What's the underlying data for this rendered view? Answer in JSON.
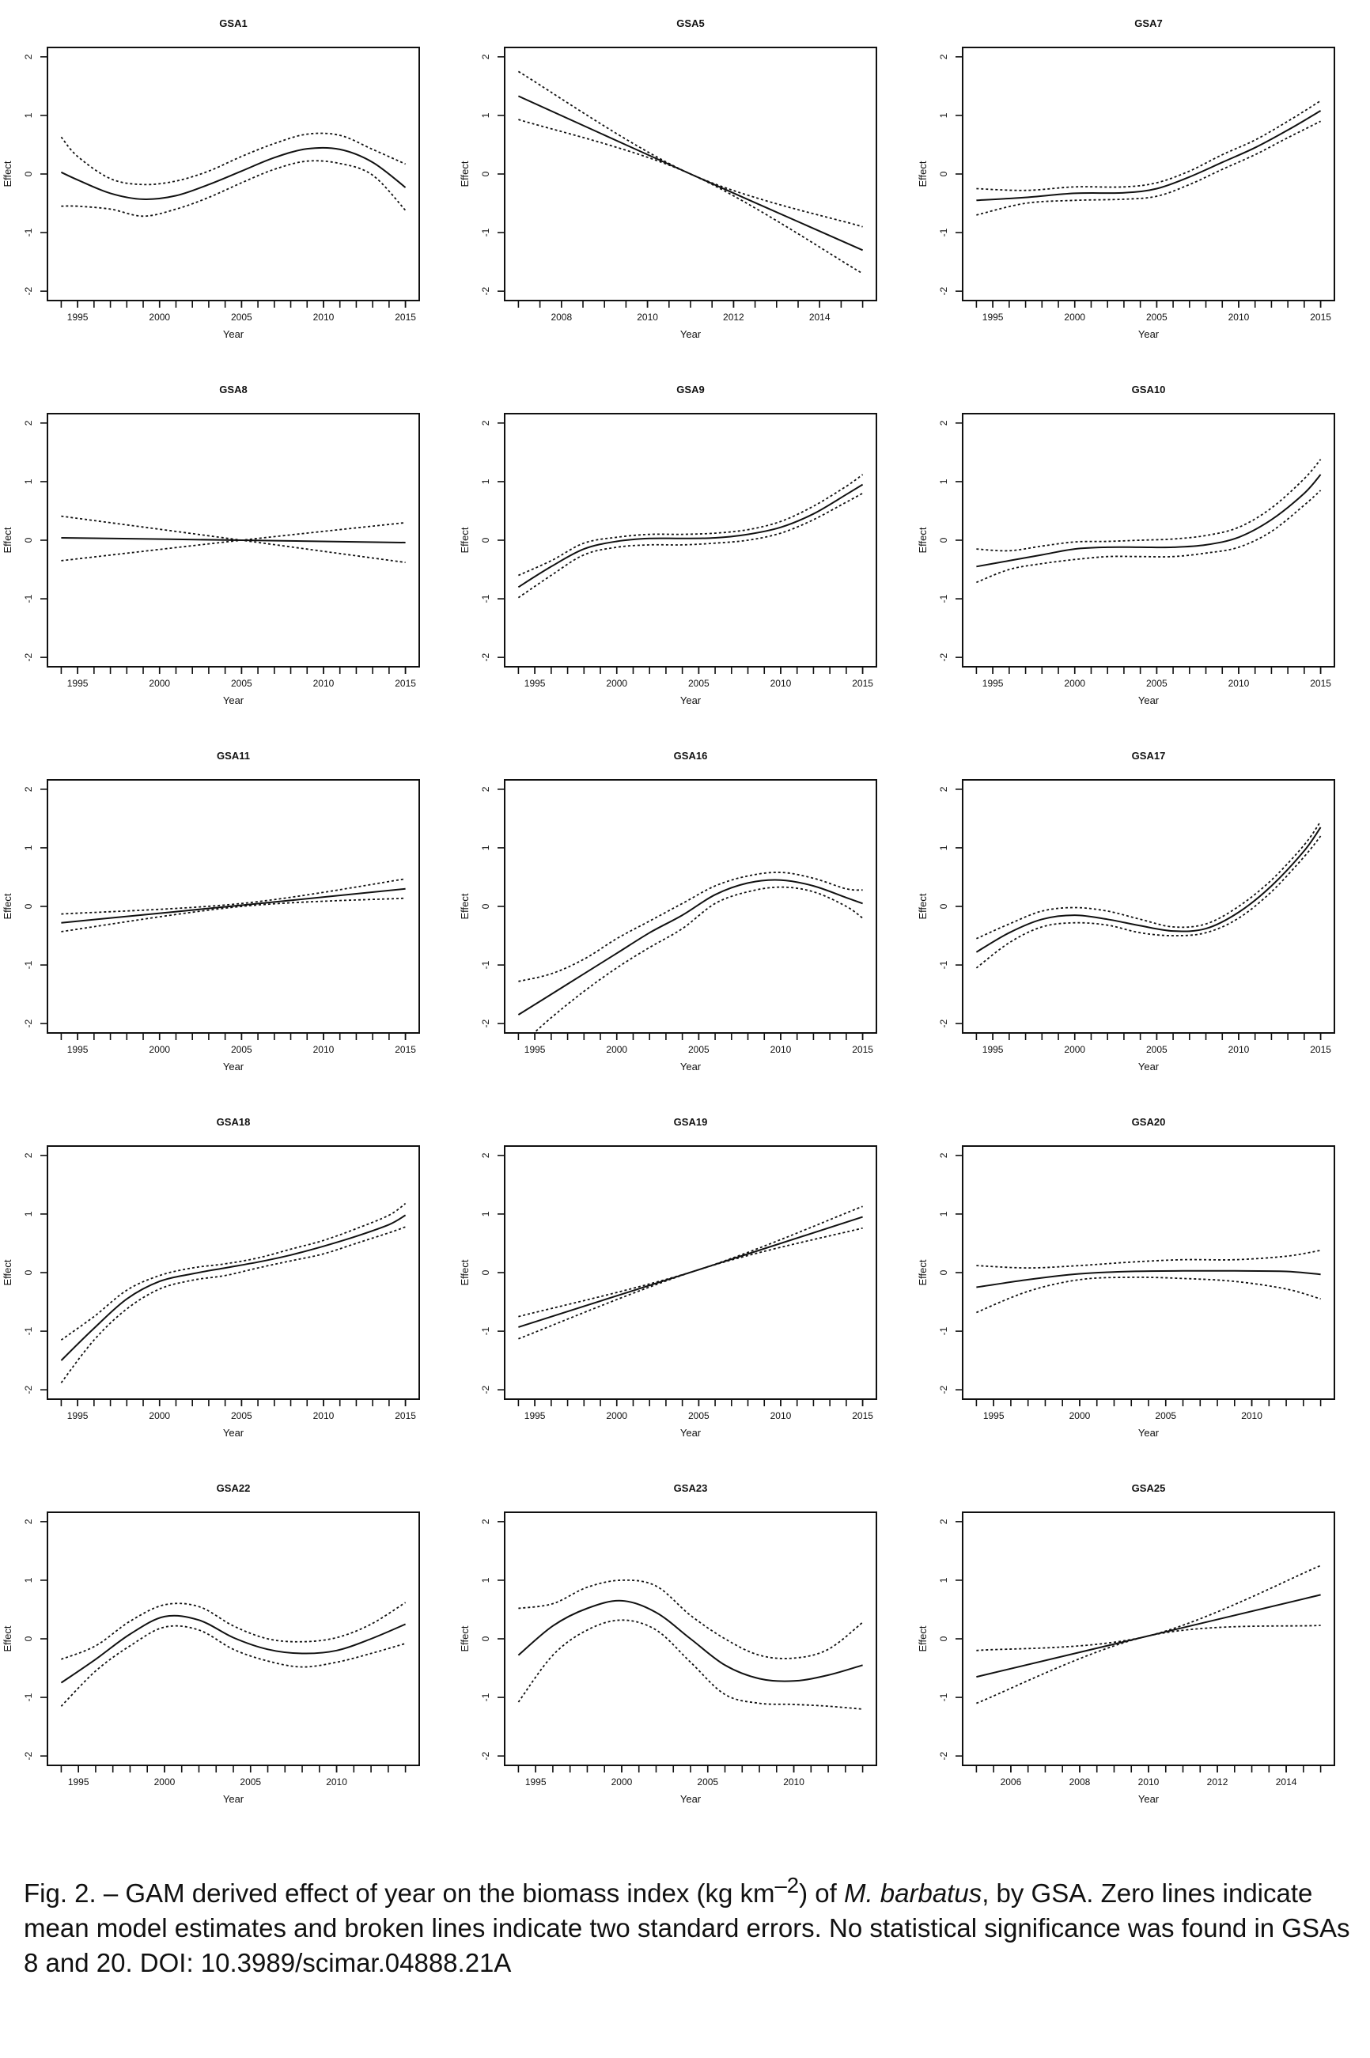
{
  "chart_data": [
    {
      "type": "line",
      "title": "GSA1",
      "xlabel": "Year",
      "ylabel": "Effect",
      "xlim": [
        1994,
        2015
      ],
      "ylim": [
        -2,
        2
      ],
      "xticks": [
        1995,
        2000,
        2005,
        2010,
        2015
      ],
      "yticks": [
        -2,
        -1,
        0,
        1,
        2
      ],
      "x": [
        1994,
        1995,
        1997,
        1999,
        2001,
        2003,
        2005,
        2007,
        2009,
        2011,
        2013,
        2015
      ],
      "series": [
        {
          "values": [
            0.03,
            -0.1,
            -0.33,
            -0.43,
            -0.37,
            -0.18,
            0.05,
            0.28,
            0.43,
            0.42,
            0.2,
            -0.23
          ]
        },
        {
          "values": [
            0.63,
            0.3,
            -0.08,
            -0.18,
            -0.12,
            0.05,
            0.3,
            0.52,
            0.68,
            0.66,
            0.42,
            0.17
          ]
        },
        {
          "values": [
            -0.55,
            -0.55,
            -0.6,
            -0.72,
            -0.6,
            -0.4,
            -0.15,
            0.08,
            0.22,
            0.18,
            -0.02,
            -0.62
          ]
        }
      ]
    },
    {
      "type": "line",
      "title": "GSA5",
      "xlabel": "Year",
      "ylabel": "Effect",
      "xlim": [
        2007,
        2015
      ],
      "ylim": [
        -2,
        2
      ],
      "xticks": [
        2008,
        2010,
        2012,
        2014
      ],
      "yticks": [
        -2,
        -1,
        0,
        1,
        2
      ],
      "x": [
        2007,
        2011,
        2015
      ],
      "series": [
        {
          "values": [
            1.33,
            0,
            -1.3
          ]
        },
        {
          "values": [
            1.75,
            0,
            -0.9
          ]
        },
        {
          "values": [
            0.93,
            0,
            -1.7
          ]
        }
      ]
    },
    {
      "type": "line",
      "title": "GSA7",
      "xlabel": "Year",
      "ylabel": "Effect",
      "xlim": [
        1994,
        2015
      ],
      "ylim": [
        -2,
        2
      ],
      "xticks": [
        1995,
        2000,
        2005,
        2010,
        2015
      ],
      "yticks": [
        -2,
        -1,
        0,
        1,
        2
      ],
      "x": [
        1994,
        1997,
        2000,
        2003,
        2005,
        2007,
        2009,
        2011,
        2013,
        2015
      ],
      "series": [
        {
          "values": [
            -0.45,
            -0.4,
            -0.33,
            -0.32,
            -0.25,
            -0.05,
            0.2,
            0.45,
            0.75,
            1.08
          ]
        },
        {
          "values": [
            -0.25,
            -0.28,
            -0.22,
            -0.22,
            -0.15,
            0.05,
            0.33,
            0.58,
            0.9,
            1.25
          ]
        },
        {
          "values": [
            -0.7,
            -0.5,
            -0.45,
            -0.43,
            -0.38,
            -0.18,
            0.08,
            0.33,
            0.62,
            0.9
          ]
        }
      ]
    },
    {
      "type": "line",
      "title": "GSA8",
      "xlabel": "Year",
      "ylabel": "Effect",
      "xlim": [
        1994,
        2015
      ],
      "ylim": [
        -2,
        2
      ],
      "xticks": [
        1995,
        2000,
        2005,
        2010,
        2015
      ],
      "yticks": [
        -2,
        -1,
        0,
        1,
        2
      ],
      "x": [
        1994,
        2005,
        2015
      ],
      "series": [
        {
          "values": [
            0.04,
            0,
            -0.04
          ]
        },
        {
          "values": [
            0.41,
            0,
            -0.38
          ]
        },
        {
          "values": [
            -0.35,
            0,
            0.3
          ]
        }
      ]
    },
    {
      "type": "line",
      "title": "GSA9",
      "xlabel": "Year",
      "ylabel": "Effect",
      "xlim": [
        1994,
        2015
      ],
      "ylim": [
        -2,
        2
      ],
      "xticks": [
        1995,
        2000,
        2005,
        2010,
        2015
      ],
      "yticks": [
        -2,
        -1,
        0,
        1,
        2
      ],
      "x": [
        1994,
        1996,
        1998,
        2000,
        2002,
        2004,
        2006,
        2008,
        2010,
        2012,
        2014,
        2015
      ],
      "series": [
        {
          "values": [
            -0.8,
            -0.45,
            -0.15,
            -0.02,
            0.03,
            0.03,
            0.04,
            0.1,
            0.22,
            0.45,
            0.78,
            0.95
          ]
        },
        {
          "values": [
            -0.6,
            -0.35,
            -0.05,
            0.05,
            0.1,
            0.1,
            0.12,
            0.18,
            0.32,
            0.58,
            0.92,
            1.12
          ]
        },
        {
          "values": [
            -0.98,
            -0.6,
            -0.25,
            -0.12,
            -0.08,
            -0.08,
            -0.05,
            0.0,
            0.12,
            0.35,
            0.65,
            0.8
          ]
        }
      ]
    },
    {
      "type": "line",
      "title": "GSA10",
      "xlabel": "Year",
      "ylabel": "Effect",
      "xlim": [
        1994,
        2015
      ],
      "ylim": [
        -2,
        2
      ],
      "xticks": [
        1995,
        2000,
        2005,
        2010,
        2015
      ],
      "yticks": [
        -2,
        -1,
        0,
        1,
        2
      ],
      "x": [
        1994,
        1996,
        1998,
        2000,
        2002,
        2004,
        2006,
        2008,
        2010,
        2012,
        2014,
        2015
      ],
      "series": [
        {
          "values": [
            -0.45,
            -0.35,
            -0.25,
            -0.15,
            -0.12,
            -0.12,
            -0.12,
            -0.08,
            0.05,
            0.35,
            0.8,
            1.12
          ]
        },
        {
          "values": [
            -0.15,
            -0.18,
            -0.1,
            -0.03,
            -0.02,
            0.0,
            0.02,
            0.08,
            0.22,
            0.55,
            1.05,
            1.38
          ]
        },
        {
          "values": [
            -0.72,
            -0.5,
            -0.4,
            -0.33,
            -0.28,
            -0.28,
            -0.28,
            -0.22,
            -0.12,
            0.15,
            0.6,
            0.85
          ]
        }
      ]
    },
    {
      "type": "line",
      "title": "GSA11",
      "xlabel": "Year",
      "ylabel": "Effect",
      "xlim": [
        1994,
        2015
      ],
      "ylim": [
        -2,
        2
      ],
      "xticks": [
        1995,
        2000,
        2005,
        2010,
        2015
      ],
      "yticks": [
        -2,
        -1,
        0,
        1,
        2
      ],
      "x": [
        1994,
        2005,
        2015
      ],
      "series": [
        {
          "values": [
            -0.28,
            0.02,
            0.3
          ]
        },
        {
          "values": [
            -0.13,
            0.05,
            0.47
          ]
        },
        {
          "values": [
            -0.43,
            0.0,
            0.14
          ]
        }
      ]
    },
    {
      "type": "line",
      "title": "GSA16",
      "xlabel": "Year",
      "ylabel": "Effect",
      "xlim": [
        1994,
        2015
      ],
      "ylim": [
        -2,
        2
      ],
      "xticks": [
        1995,
        2000,
        2005,
        2010,
        2015
      ],
      "yticks": [
        -2,
        -1,
        0,
        1,
        2
      ],
      "x": [
        1994,
        1996,
        1998,
        2000,
        2002,
        2004,
        2006,
        2008,
        2010,
        2012,
        2014,
        2015
      ],
      "series": [
        {
          "values": [
            -1.85,
            -1.5,
            -1.15,
            -0.8,
            -0.45,
            -0.15,
            0.2,
            0.4,
            0.45,
            0.35,
            0.15,
            0.05
          ]
        },
        {
          "values": [
            -1.28,
            -1.15,
            -0.9,
            -0.55,
            -0.25,
            0.05,
            0.35,
            0.52,
            0.58,
            0.48,
            0.3,
            0.28
          ]
        },
        {
          "values": [
            -2.4,
            -1.9,
            -1.45,
            -1.05,
            -0.7,
            -0.38,
            0.05,
            0.25,
            0.33,
            0.25,
            0.0,
            -0.2
          ]
        }
      ]
    },
    {
      "type": "line",
      "title": "GSA17",
      "xlabel": "Year",
      "ylabel": "Effect",
      "xlim": [
        1994,
        2015
      ],
      "ylim": [
        -2,
        2
      ],
      "xticks": [
        1995,
        2000,
        2005,
        2010,
        2015
      ],
      "yticks": [
        -2,
        -1,
        0,
        1,
        2
      ],
      "x": [
        1994,
        1996,
        1998,
        2000,
        2002,
        2004,
        2006,
        2008,
        2010,
        2012,
        2014,
        2015
      ],
      "series": [
        {
          "values": [
            -0.78,
            -0.45,
            -0.22,
            -0.15,
            -0.22,
            -0.33,
            -0.42,
            -0.38,
            -0.1,
            0.35,
            0.95,
            1.35
          ]
        },
        {
          "values": [
            -0.55,
            -0.3,
            -0.08,
            -0.02,
            -0.08,
            -0.22,
            -0.35,
            -0.3,
            0.0,
            0.45,
            1.05,
            1.45
          ]
        },
        {
          "values": [
            -1.05,
            -0.62,
            -0.35,
            -0.28,
            -0.32,
            -0.45,
            -0.5,
            -0.45,
            -0.2,
            0.25,
            0.85,
            1.2
          ]
        }
      ]
    },
    {
      "type": "line",
      "title": "GSA18",
      "xlabel": "Year",
      "ylabel": "Effect",
      "xlim": [
        1994,
        2015
      ],
      "ylim": [
        -2,
        2
      ],
      "xticks": [
        1995,
        2000,
        2005,
        2010,
        2015
      ],
      "yticks": [
        -2,
        -1,
        0,
        1,
        2
      ],
      "x": [
        1994,
        1996,
        1998,
        2000,
        2002,
        2004,
        2006,
        2008,
        2010,
        2012,
        2014,
        2015
      ],
      "series": [
        {
          "values": [
            -1.5,
            -0.95,
            -0.45,
            -0.15,
            -0.02,
            0.08,
            0.18,
            0.3,
            0.45,
            0.62,
            0.82,
            0.98
          ]
        },
        {
          "values": [
            -1.15,
            -0.75,
            -0.3,
            -0.05,
            0.08,
            0.15,
            0.25,
            0.4,
            0.55,
            0.75,
            0.98,
            1.18
          ]
        },
        {
          "values": [
            -1.88,
            -1.15,
            -0.62,
            -0.28,
            -0.13,
            -0.05,
            0.08,
            0.2,
            0.32,
            0.5,
            0.68,
            0.78
          ]
        }
      ]
    },
    {
      "type": "line",
      "title": "GSA19",
      "xlabel": "Year",
      "ylabel": "Effect",
      "xlim": [
        1994,
        2015
      ],
      "ylim": [
        -2,
        2
      ],
      "xticks": [
        1995,
        2000,
        2005,
        2010,
        2015
      ],
      "yticks": [
        -2,
        -1,
        0,
        1,
        2
      ],
      "x": [
        1994,
        2005,
        2015
      ],
      "series": [
        {
          "values": [
            -0.93,
            0.05,
            0.95
          ]
        },
        {
          "values": [
            -0.75,
            0.05,
            1.13
          ]
        },
        {
          "values": [
            -1.13,
            0.05,
            0.76
          ]
        }
      ]
    },
    {
      "type": "line",
      "title": "GSA20",
      "xlabel": "Year",
      "ylabel": "Effect",
      "xlim": [
        1994,
        2014
      ],
      "ylim": [
        -2,
        2
      ],
      "xticks": [
        1995,
        2000,
        2005,
        2010
      ],
      "yticks": [
        -2,
        -1,
        0,
        1,
        2
      ],
      "x": [
        1994,
        1997,
        2000,
        2003,
        2006,
        2009,
        2012,
        2014
      ],
      "series": [
        {
          "values": [
            -0.25,
            -0.12,
            -0.02,
            0.02,
            0.03,
            0.03,
            0.02,
            -0.03
          ]
        },
        {
          "values": [
            0.12,
            0.08,
            0.12,
            0.18,
            0.22,
            0.22,
            0.28,
            0.38
          ]
        },
        {
          "values": [
            -0.68,
            -0.32,
            -0.12,
            -0.08,
            -0.1,
            -0.15,
            -0.28,
            -0.45
          ]
        }
      ]
    },
    {
      "type": "line",
      "title": "GSA22",
      "xlabel": "Year",
      "ylabel": "Effect",
      "xlim": [
        1994,
        2014
      ],
      "ylim": [
        -2,
        2
      ],
      "xticks": [
        1995,
        2000,
        2005,
        2010
      ],
      "yticks": [
        -2,
        -1,
        0,
        1,
        2
      ],
      "x": [
        1994,
        1996,
        1998,
        2000,
        2002,
        2004,
        2006,
        2008,
        2010,
        2012,
        2014
      ],
      "series": [
        {
          "values": [
            -0.75,
            -0.35,
            0.08,
            0.38,
            0.32,
            0.02,
            -0.18,
            -0.25,
            -0.2,
            0.0,
            0.25
          ]
        },
        {
          "values": [
            -0.35,
            -0.12,
            0.3,
            0.58,
            0.55,
            0.22,
            0.0,
            -0.05,
            0.02,
            0.25,
            0.62
          ]
        },
        {
          "values": [
            -1.15,
            -0.55,
            -0.12,
            0.2,
            0.15,
            -0.18,
            -0.38,
            -0.48,
            -0.4,
            -0.25,
            -0.08
          ]
        }
      ]
    },
    {
      "type": "line",
      "title": "GSA23",
      "xlabel": "Year",
      "ylabel": "Effect",
      "xlim": [
        1994,
        2014
      ],
      "ylim": [
        -2,
        2
      ],
      "xticks": [
        1995,
        2000,
        2005,
        2010
      ],
      "yticks": [
        -2,
        -1,
        0,
        1,
        2
      ],
      "x": [
        1994,
        1996,
        1998,
        2000,
        2002,
        2004,
        2006,
        2008,
        2010,
        2012,
        2014
      ],
      "series": [
        {
          "values": [
            -0.28,
            0.22,
            0.52,
            0.65,
            0.45,
            0.0,
            -0.45,
            -0.68,
            -0.72,
            -0.62,
            -0.45
          ]
        },
        {
          "values": [
            0.52,
            0.6,
            0.88,
            1.0,
            0.9,
            0.4,
            0.0,
            -0.28,
            -0.33,
            -0.18,
            0.28
          ]
        },
        {
          "values": [
            -1.08,
            -0.28,
            0.15,
            0.32,
            0.15,
            -0.4,
            -0.95,
            -1.1,
            -1.12,
            -1.15,
            -1.2
          ]
        }
      ]
    },
    {
      "type": "line",
      "title": "GSA25",
      "xlabel": "Year",
      "ylabel": "Effect",
      "xlim": [
        2005,
        2015
      ],
      "ylim": [
        -2,
        2
      ],
      "xticks": [
        2006,
        2008,
        2010,
        2012,
        2014
      ],
      "yticks": [
        -2,
        -1,
        0,
        1,
        2
      ],
      "x": [
        2005,
        2010,
        2015
      ],
      "series": [
        {
          "values": [
            -0.65,
            0.05,
            0.75
          ]
        },
        {
          "values": [
            -0.2,
            0.05,
            1.25
          ]
        },
        {
          "values": [
            -1.1,
            0.05,
            0.23
          ]
        }
      ]
    }
  ],
  "caption": {
    "part1": "Fig. 2. – GAM derived effect of year on the biomass index (kg km",
    "sup": "–2",
    "part2": ") of ",
    "species": "M. barbatus",
    "part3": ", by GSA. Zero lines indicate mean model estimates and broken lines indicate two standard errors. No statistical significance was found in GSAs 8 and 20. DOI: 10.3989/scimar.04888.21A"
  }
}
